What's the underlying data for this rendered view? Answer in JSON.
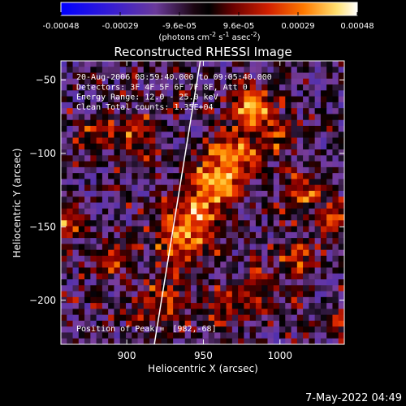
{
  "chart_data": {
    "type": "heatmap",
    "title": "Reconstructed RHESSI Image",
    "xlabel": "Heliocentric X (arcsec)",
    "ylabel": "Heliocentric Y (arcsec)",
    "xlim": [
      857,
      1042
    ],
    "ylim": [
      -230,
      -37
    ],
    "x_ticks": [
      900,
      950,
      1000
    ],
    "y_ticks": [
      -50,
      -100,
      -150,
      -200
    ],
    "colorbar": {
      "ticks": [
        "-0.00048",
        "-0.00029",
        "-9.6e-05",
        "9.6e-05",
        "0.00029",
        "0.00048"
      ],
      "unit_label": "(photons cm^-2 s^-1 asec^-2)",
      "range": [
        -0.00048,
        0.00048
      ]
    },
    "annotations": [
      "20-Aug-2006 08:59:40.000 to 09:05:40.000",
      "Detectors: 3F 4F 5F 6F 7F 8F, Att 0",
      "Energy Range: 12.0 - 25.0 keV",
      "Clean     Total counts: 1.35E+04"
    ],
    "peak": {
      "label": "Position of Peak =",
      "value": "[982,-68]",
      "x": 982,
      "y": -68
    },
    "limb_line": {
      "x_top": 948,
      "y_top": -37,
      "x_bottom": 918,
      "y_bottom": -230
    },
    "colormap": [
      "#0000ff",
      "#4b2fb0",
      "#7a3d9c",
      "#000000",
      "#8a0000",
      "#e83000",
      "#ff8c00",
      "#ffe15a",
      "#ffffff"
    ],
    "grid": false
  },
  "footer": {
    "date": "7-May-2022 04:49"
  }
}
